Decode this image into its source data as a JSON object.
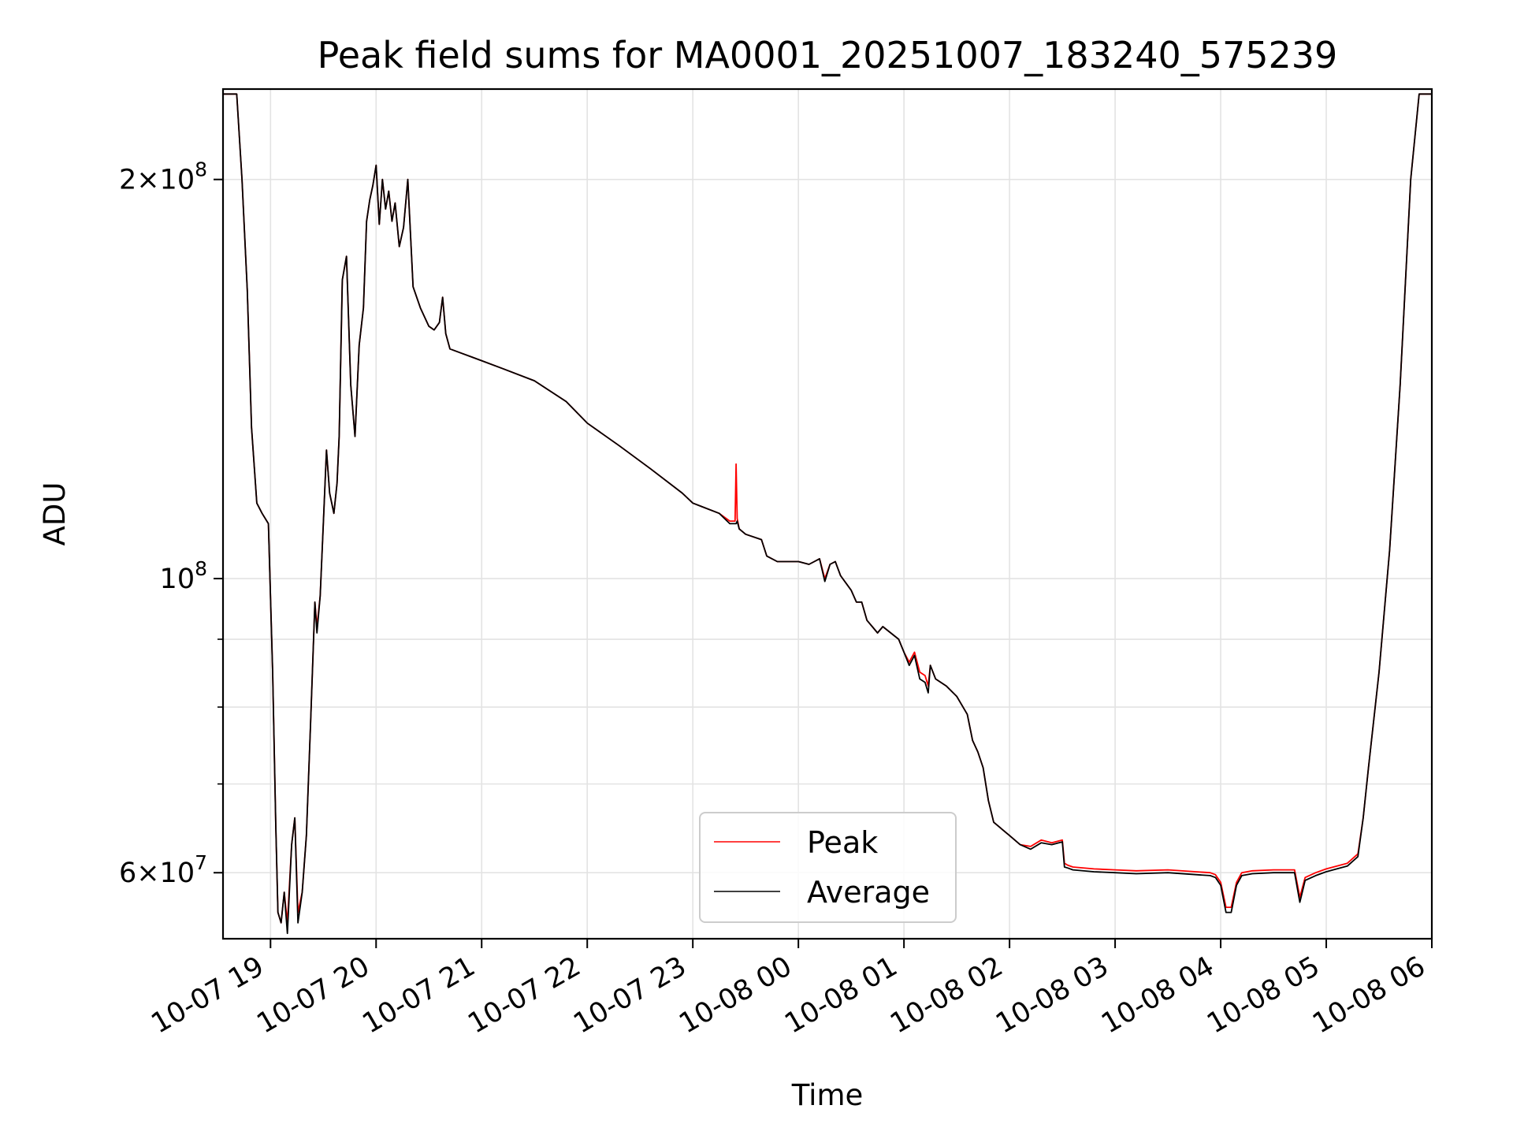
{
  "chart_data": {
    "type": "line",
    "title": "Peak field sums for MA0001_20251007_183240_575239",
    "xlabel": "Time",
    "ylabel": "ADU",
    "yscale": "log",
    "ylim": [
      53500000,
      234000000
    ],
    "xlim_hours": [
      18.55,
      30.0
    ],
    "x_unit": "hours since 10-07 00:00",
    "grid": true,
    "legend_position": "lower center",
    "x_ticks": [
      {
        "hour": 19,
        "label": "10-07 19"
      },
      {
        "hour": 20,
        "label": "10-07 20"
      },
      {
        "hour": 21,
        "label": "10-07 21"
      },
      {
        "hour": 22,
        "label": "10-07 22"
      },
      {
        "hour": 23,
        "label": "10-07 23"
      },
      {
        "hour": 24,
        "label": "10-08 00"
      },
      {
        "hour": 25,
        "label": "10-08 01"
      },
      {
        "hour": 26,
        "label": "10-08 02"
      },
      {
        "hour": 27,
        "label": "10-08 03"
      },
      {
        "hour": 28,
        "label": "10-08 04"
      },
      {
        "hour": 29,
        "label": "10-08 05"
      },
      {
        "hour": 30,
        "label": "10-08 06"
      }
    ],
    "y_major_ticks": [
      {
        "value": 60000000,
        "mantissa": "6",
        "exponent": "7"
      },
      {
        "value": 100000000,
        "mantissa": "",
        "exponent": "8"
      },
      {
        "value": 200000000,
        "mantissa": "2",
        "exponent": "8"
      }
    ],
    "y_minor_ticks": [
      70000000,
      80000000,
      90000000
    ],
    "series": [
      {
        "name": "Peak",
        "color": "#ff0000",
        "hours": [
          18.55,
          18.68,
          18.73,
          18.78,
          18.82,
          18.87,
          18.92,
          18.98,
          19.02,
          19.05,
          19.07,
          19.1,
          19.13,
          19.16,
          19.2,
          19.23,
          19.26,
          19.3,
          19.34,
          19.38,
          19.42,
          19.44,
          19.47,
          19.5,
          19.53,
          19.56,
          19.6,
          19.63,
          19.65,
          19.68,
          19.72,
          19.76,
          19.8,
          19.84,
          19.88,
          19.91,
          19.94,
          19.97,
          20.0,
          20.03,
          20.06,
          20.09,
          20.12,
          20.15,
          20.18,
          20.22,
          20.26,
          20.3,
          20.35,
          20.42,
          20.5,
          20.55,
          20.6,
          20.63,
          20.66,
          20.7,
          20.8,
          20.9,
          21.0,
          21.2,
          21.5,
          21.8,
          22.0,
          22.3,
          22.6,
          22.9,
          23.0,
          23.25,
          23.35,
          23.4,
          23.41,
          23.42,
          23.44,
          23.5,
          23.65,
          23.7,
          23.8,
          24.0,
          24.1,
          24.15,
          24.2,
          24.25,
          24.3,
          24.35,
          24.4,
          24.5,
          24.55,
          24.6,
          24.65,
          24.7,
          24.75,
          24.8,
          24.95,
          25.0,
          25.05,
          25.1,
          25.15,
          25.2,
          25.23,
          25.25,
          25.3,
          25.4,
          25.5,
          25.6,
          25.65,
          25.7,
          25.75,
          25.8,
          25.85,
          26.0,
          26.1,
          26.2,
          26.3,
          26.4,
          26.5,
          26.52,
          26.55,
          26.6,
          26.8,
          27.0,
          27.2,
          27.5,
          27.9,
          27.95,
          28.0,
          28.05,
          28.1,
          28.15,
          28.2,
          28.3,
          28.5,
          28.7,
          28.75,
          28.8,
          28.9,
          29.0,
          29.2,
          29.3,
          29.35,
          29.4,
          29.5,
          29.6,
          29.7,
          29.8,
          29.88,
          30.0
        ],
        "values": [
          232000000,
          232000000,
          200000000,
          165000000,
          130000000,
          114000000,
          112000000,
          110000000,
          85000000,
          65000000,
          56000000,
          55000000,
          58000000,
          55000000,
          63000000,
          66000000,
          56000000,
          58000000,
          64000000,
          78000000,
          96000000,
          92000000,
          97000000,
          110000000,
          125000000,
          116000000,
          112000000,
          118000000,
          128000000,
          168000000,
          175000000,
          140000000,
          128000000,
          150000000,
          160000000,
          186000000,
          193000000,
          198000000,
          205000000,
          185000000,
          200000000,
          190000000,
          196000000,
          186000000,
          192000000,
          178000000,
          184000000,
          200000000,
          166000000,
          160000000,
          155000000,
          154000000,
          156000000,
          163000000,
          153000000,
          149000000,
          148000000,
          147000000,
          146000000,
          144000000,
          141000000,
          136000000,
          131000000,
          126000000,
          121000000,
          116000000,
          114000000,
          112000000,
          110500000,
          110500000,
          122000000,
          111000000,
          109000000,
          108000000,
          107000000,
          104000000,
          103000000,
          103000000,
          102500000,
          103000000,
          103500000,
          100000000,
          102500000,
          103000000,
          100500000,
          98000000,
          96000000,
          96000000,
          93000000,
          92000000,
          91000000,
          92000000,
          90000000,
          88000000,
          86500000,
          88000000,
          85000000,
          84500000,
          83000000,
          86000000,
          84000000,
          83000000,
          81500000,
          79000000,
          75500000,
          74000000,
          72000000,
          68000000,
          65500000,
          64000000,
          63000000,
          62800000,
          63500000,
          63200000,
          63500000,
          61000000,
          60800000,
          60600000,
          60400000,
          60300000,
          60200000,
          60300000,
          60000000,
          59800000,
          59000000,
          56500000,
          56500000,
          59000000,
          60000000,
          60200000,
          60300000,
          60300000,
          57500000,
          59500000,
          60000000,
          60400000,
          61000000,
          62000000,
          66000000,
          72000000,
          85000000,
          105000000,
          140000000,
          200000000,
          232000000,
          232000000
        ]
      },
      {
        "name": "Average",
        "color": "#000000",
        "hours": [
          18.55,
          18.68,
          18.73,
          18.78,
          18.82,
          18.87,
          18.92,
          18.98,
          19.02,
          19.05,
          19.07,
          19.1,
          19.13,
          19.16,
          19.2,
          19.23,
          19.26,
          19.3,
          19.34,
          19.38,
          19.42,
          19.44,
          19.47,
          19.5,
          19.53,
          19.56,
          19.6,
          19.63,
          19.65,
          19.68,
          19.72,
          19.76,
          19.8,
          19.84,
          19.88,
          19.91,
          19.94,
          19.97,
          20.0,
          20.03,
          20.06,
          20.09,
          20.12,
          20.15,
          20.18,
          20.22,
          20.26,
          20.3,
          20.35,
          20.42,
          20.5,
          20.55,
          20.6,
          20.63,
          20.66,
          20.7,
          20.8,
          20.9,
          21.0,
          21.2,
          21.5,
          21.8,
          22.0,
          22.3,
          22.6,
          22.9,
          23.0,
          23.25,
          23.35,
          23.4,
          23.41,
          23.42,
          23.44,
          23.5,
          23.65,
          23.7,
          23.8,
          24.0,
          24.1,
          24.15,
          24.2,
          24.25,
          24.3,
          24.35,
          24.4,
          24.5,
          24.55,
          24.6,
          24.65,
          24.7,
          24.75,
          24.8,
          24.95,
          25.0,
          25.05,
          25.1,
          25.15,
          25.2,
          25.23,
          25.25,
          25.3,
          25.4,
          25.5,
          25.6,
          25.65,
          25.7,
          25.75,
          25.8,
          25.85,
          26.0,
          26.1,
          26.2,
          26.3,
          26.4,
          26.5,
          26.52,
          26.55,
          26.6,
          26.8,
          27.0,
          27.2,
          27.5,
          27.9,
          27.95,
          28.0,
          28.05,
          28.1,
          28.15,
          28.2,
          28.3,
          28.5,
          28.7,
          28.75,
          28.8,
          28.9,
          29.0,
          29.2,
          29.3,
          29.35,
          29.4,
          29.5,
          29.6,
          29.7,
          29.8,
          29.88,
          30.0
        ],
        "values": [
          232000000,
          232000000,
          200000000,
          165000000,
          130000000,
          114000000,
          112000000,
          110000000,
          85000000,
          65000000,
          56000000,
          55000000,
          58000000,
          54000000,
          63000000,
          66000000,
          55000000,
          58000000,
          64000000,
          78000000,
          96000000,
          91000000,
          97000000,
          110000000,
          125000000,
          116000000,
          112000000,
          118000000,
          128000000,
          168000000,
          175000000,
          140000000,
          128000000,
          150000000,
          160000000,
          186000000,
          193000000,
          198000000,
          205000000,
          185000000,
          200000000,
          190000000,
          196000000,
          186000000,
          192000000,
          178000000,
          184000000,
          200000000,
          166000000,
          160000000,
          155000000,
          154000000,
          156000000,
          163000000,
          153000000,
          149000000,
          148000000,
          147000000,
          146000000,
          144000000,
          141000000,
          136000000,
          131000000,
          126000000,
          121000000,
          116000000,
          114000000,
          112000000,
          110000000,
          110000000,
          110000000,
          110500000,
          109000000,
          108000000,
          107000000,
          104000000,
          103000000,
          103000000,
          102500000,
          103000000,
          103500000,
          99500000,
          102500000,
          103000000,
          100500000,
          98000000,
          96000000,
          96000000,
          93000000,
          92000000,
          91000000,
          92000000,
          90000000,
          88000000,
          86000000,
          87500000,
          84000000,
          83500000,
          82000000,
          86000000,
          84000000,
          83000000,
          81500000,
          79000000,
          75500000,
          74000000,
          72000000,
          68000000,
          65500000,
          64000000,
          63000000,
          62500000,
          63200000,
          63000000,
          63300000,
          60600000,
          60500000,
          60300000,
          60100000,
          60000000,
          59900000,
          60000000,
          59700000,
          59500000,
          58700000,
          56000000,
          56000000,
          58700000,
          59700000,
          59900000,
          60000000,
          60000000,
          57000000,
          59200000,
          59700000,
          60100000,
          60700000,
          61700000,
          66000000,
          72000000,
          85000000,
          105000000,
          140000000,
          200000000,
          232000000,
          232000000
        ]
      }
    ]
  }
}
